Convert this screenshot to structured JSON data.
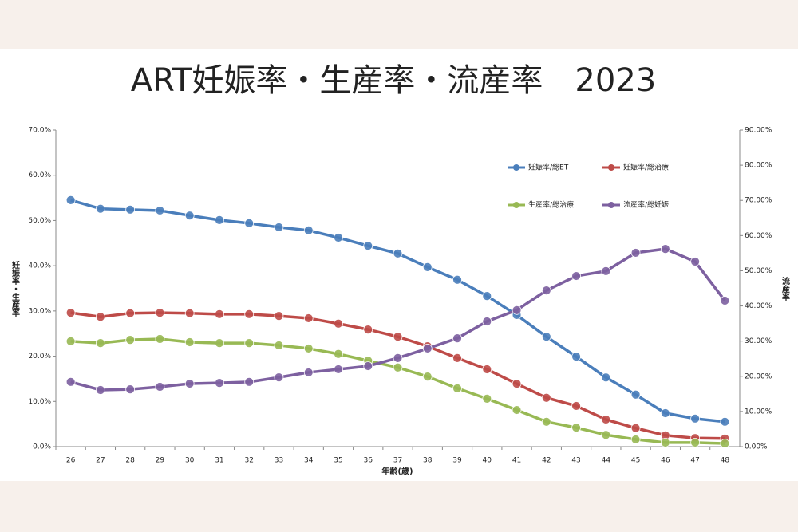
{
  "chart_data": {
    "type": "line",
    "title": "ART妊娠率・生産率・流産率　2023",
    "x_label": "年齢(歳)",
    "y_label": "妊娠率・生産率",
    "y2_label": "流産率",
    "categories": [
      "26",
      "27",
      "28",
      "29",
      "30",
      "31",
      "32",
      "33",
      "34",
      "35",
      "36",
      "37",
      "38",
      "39",
      "40",
      "41",
      "42",
      "43",
      "44",
      "45",
      "46",
      "47",
      "48"
    ],
    "series": [
      {
        "name": "妊娠率/総ET",
        "color": "#4a7ebb",
        "values": [
          54.5,
          52.6,
          52.4,
          52.2,
          51.1,
          50.1,
          49.4,
          48.5,
          47.8,
          46.2,
          44.4,
          42.7,
          39.7,
          36.9,
          33.3,
          29.1,
          24.3,
          19.9,
          15.3,
          11.5,
          7.4,
          6.2,
          5.5
        ]
      },
      {
        "name": "妊娠率/総治療",
        "color": "#be4b48",
        "values": [
          29.6,
          28.7,
          29.5,
          29.6,
          29.5,
          29.3,
          29.3,
          28.9,
          28.4,
          27.2,
          25.9,
          24.3,
          22.2,
          19.6,
          17.1,
          13.9,
          10.8,
          9.0,
          6.0,
          4.1,
          2.5,
          1.9,
          1.8
        ]
      },
      {
        "name": "生産率/総治療",
        "color": "#98b954",
        "values": [
          23.3,
          22.9,
          23.6,
          23.8,
          23.1,
          22.9,
          22.9,
          22.4,
          21.7,
          20.5,
          19.0,
          17.5,
          15.5,
          12.9,
          10.6,
          8.1,
          5.5,
          4.2,
          2.6,
          1.6,
          0.9,
          0.9,
          0.7
        ]
      },
      {
        "name": "流産率/総妊娠",
        "color": "#7d60a0",
        "axis": "y2",
        "values": [
          18.4,
          16.1,
          16.3,
          17.0,
          17.9,
          18.1,
          18.4,
          19.7,
          21.1,
          22.0,
          22.9,
          25.2,
          27.9,
          30.8,
          35.6,
          38.8,
          44.4,
          48.5,
          49.9,
          55.1,
          56.2,
          52.6,
          41.5
        ]
      }
    ],
    "ylim": [
      0,
      70
    ],
    "yticks": [
      {
        "value": 0,
        "label": "0.0%"
      },
      {
        "value": 10,
        "label": "10.0%"
      },
      {
        "value": 20,
        "label": "20.0%"
      },
      {
        "value": 30,
        "label": "30.0%"
      },
      {
        "value": 40,
        "label": "40.0%"
      },
      {
        "value": 50,
        "label": "50.0%"
      },
      {
        "value": 60,
        "label": "60.0%"
      },
      {
        "value": 70,
        "label": "70.0%"
      }
    ],
    "y2lim": [
      0,
      90
    ],
    "y2ticks": [
      {
        "value": 0,
        "label": "0.00%"
      },
      {
        "value": 10,
        "label": "10.00%"
      },
      {
        "value": 20,
        "label": "20.00%"
      },
      {
        "value": 30,
        "label": "30.00%"
      },
      {
        "value": 40,
        "label": "40.00%"
      },
      {
        "value": 50,
        "label": "50.00%"
      },
      {
        "value": 60,
        "label": "60.00%"
      },
      {
        "value": 70,
        "label": "70.00%"
      },
      {
        "value": 80,
        "label": "80.00%"
      },
      {
        "value": 90,
        "label": "90.00%"
      }
    ],
    "grid": false,
    "legend": "top-right"
  }
}
